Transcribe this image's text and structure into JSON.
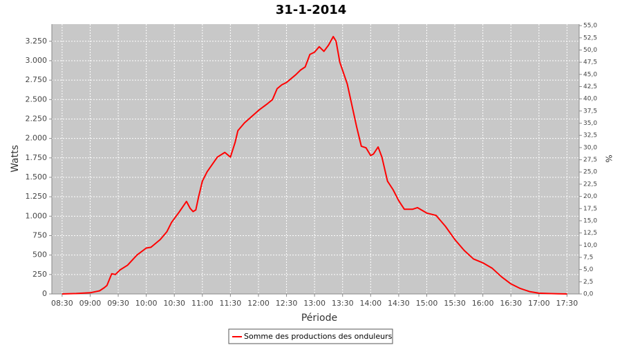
{
  "chart_data": {
    "type": "line",
    "title": "31-1-2014",
    "xlabel": "Période",
    "ylabel": "Watts",
    "y2label": "%",
    "x": [
      "08:30",
      "08:45",
      "09:00",
      "09:10",
      "09:15",
      "09:18",
      "09:23",
      "09:27",
      "09:32",
      "09:40",
      "09:50",
      "10:00",
      "10:05",
      "10:15",
      "10:22",
      "10:27",
      "10:35",
      "10:43",
      "10:47",
      "10:50",
      "10:53",
      "10:56",
      "11:00",
      "11:05",
      "11:16",
      "11:24",
      "11:30",
      "11:35",
      "11:38",
      "11:45",
      "12:00",
      "12:10",
      "12:15",
      "12:20",
      "12:25",
      "12:30",
      "12:40",
      "12:45",
      "12:50",
      "12:55",
      "13:00",
      "13:05",
      "13:10",
      "13:15",
      "13:20",
      "13:23",
      "13:27",
      "13:35",
      "13:45",
      "13:50",
      "13:55",
      "14:00",
      "14:03",
      "14:08",
      "14:12",
      "14:18",
      "14:24",
      "14:30",
      "14:36",
      "14:45",
      "14:50",
      "15:00",
      "15:10",
      "15:20",
      "15:30",
      "15:40",
      "15:50",
      "16:00",
      "16:10",
      "16:20",
      "16:30",
      "16:40",
      "16:50",
      "17:00",
      "17:10",
      "17:20",
      "17:30"
    ],
    "series": [
      {
        "name": "Somme des productions des onduleurs",
        "color": "#ff0000",
        "values": [
          0,
          5,
          15,
          40,
          80,
          110,
          260,
          250,
          310,
          370,
          500,
          590,
          600,
          700,
          800,
          920,
          1050,
          1190,
          1100,
          1060,
          1080,
          1250,
          1450,
          1570,
          1760,
          1820,
          1760,
          1950,
          2100,
          2200,
          2360,
          2450,
          2500,
          2640,
          2690,
          2720,
          2820,
          2880,
          2920,
          3080,
          3110,
          3180,
          3120,
          3200,
          3310,
          3250,
          2980,
          2700,
          2150,
          1900,
          1880,
          1780,
          1800,
          1890,
          1760,
          1450,
          1340,
          1200,
          1090,
          1090,
          1110,
          1040,
          1010,
          870,
          700,
          560,
          450,
          400,
          330,
          220,
          130,
          70,
          30,
          10,
          5,
          2,
          0
        ]
      }
    ],
    "xlim": [
      "08:19",
      "17:43"
    ],
    "xticks": [
      "08:30",
      "09:00",
      "09:30",
      "10:00",
      "10:30",
      "11:00",
      "11:30",
      "12:00",
      "12:30",
      "13:00",
      "13:30",
      "14:00",
      "14:30",
      "15:00",
      "15:30",
      "16:00",
      "16:30",
      "17:00",
      "17:30"
    ],
    "ylim": [
      0,
      3470
    ],
    "yticks": [
      0,
      250,
      500,
      750,
      {
        "value": 1000,
        "label": "1.000"
      },
      {
        "value": 1250,
        "label": "1.250"
      },
      {
        "value": 1500,
        "label": "1.500"
      },
      {
        "value": 1750,
        "label": "1.750"
      },
      {
        "value": 2000,
        "label": "2.000"
      },
      {
        "value": 2250,
        "label": "2.250"
      },
      {
        "value": 2500,
        "label": "2.500"
      },
      {
        "value": 2750,
        "label": "2.750"
      },
      {
        "value": 3000,
        "label": "3.000"
      },
      {
        "value": 3250,
        "label": "3.250"
      }
    ],
    "y2lim": [
      0,
      55.3
    ],
    "y2ticks": [
      {
        "value": 0,
        "label": "0,0"
      },
      {
        "value": 2.5,
        "label": "2,5"
      },
      {
        "value": 5,
        "label": "5,0"
      },
      {
        "value": 7.5,
        "label": "7,5"
      },
      {
        "value": 10,
        "label": "10,0"
      },
      {
        "value": 12.5,
        "label": "12,5"
      },
      {
        "value": 15,
        "label": "15,0"
      },
      {
        "value": 17.5,
        "label": "17,5"
      },
      {
        "value": 20,
        "label": "20,0"
      },
      {
        "value": 22.5,
        "label": "22,5"
      },
      {
        "value": 25,
        "label": "25,0"
      },
      {
        "value": 27.5,
        "label": "27,5"
      },
      {
        "value": 30,
        "label": "30,0"
      },
      {
        "value": 32.5,
        "label": "32,5"
      },
      {
        "value": 35,
        "label": "35,0"
      },
      {
        "value": 37.5,
        "label": "37,5"
      },
      {
        "value": 40,
        "label": "40,0"
      },
      {
        "value": 42.5,
        "label": "42,5"
      },
      {
        "value": 45,
        "label": "45,0"
      },
      {
        "value": 47.5,
        "label": "47,5"
      },
      {
        "value": 50,
        "label": "50,0"
      },
      {
        "value": 52.5,
        "label": "52,5"
      },
      {
        "value": 55,
        "label": "55,0"
      }
    ],
    "grid": true
  }
}
